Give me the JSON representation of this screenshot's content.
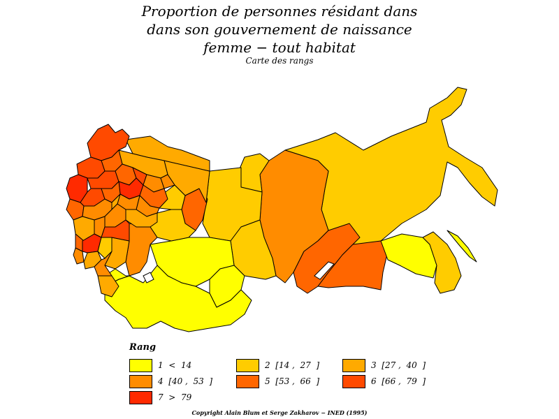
{
  "title_lines": [
    "Proportion de personnes résidant dans",
    "dans son gouvernement de naissance",
    "femme  −  tout habitat"
  ],
  "subtitle": "Carte des rangs",
  "legend": {
    "title": "Rang",
    "items": [
      {
        "label": "1  <  14",
        "color": "#ffff00"
      },
      {
        "label": "2  [14 ,  27  ]",
        "color": "#ffcc00"
      },
      {
        "label": "3  [27 ,  40  ]",
        "color": "#ffaa00"
      },
      {
        "label": "4  [40 ,  53  ]",
        "color": "#ff8c00"
      },
      {
        "label": "5  [53 ,  66  ]",
        "color": "#ff6600"
      },
      {
        "label": "6  [66 ,  79  ]",
        "color": "#ff4a00"
      },
      {
        "label": "7  >  79",
        "color": "#ff2a00"
      }
    ]
  },
  "copyright": "Copyright Alain Blum et Serge Zakharov  −  INED (1995)"
}
